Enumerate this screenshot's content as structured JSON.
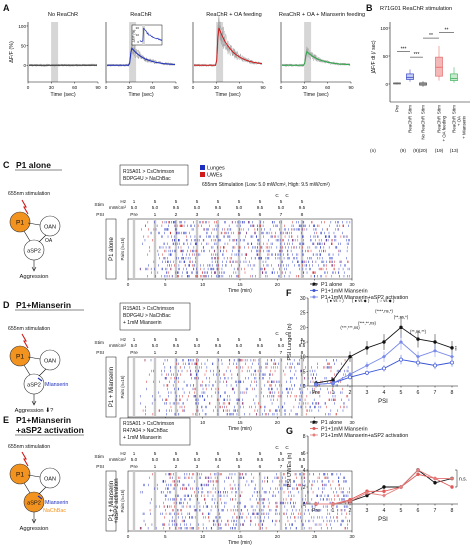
{
  "panelA": {
    "letter": "A",
    "ylabel": "ΔF/F (%)",
    "xlabel": "Time (sec)",
    "yticks": [
      "100",
      "50",
      "0"
    ],
    "xticks": [
      "0",
      "30",
      "60",
      "90"
    ],
    "insetY": "ΔF/F (%)",
    "insetTicks": [
      "20",
      "10",
      "0"
    ],
    "plots": [
      {
        "title": "No ReaChR",
        "color": "#333333",
        "peak": 0
      },
      {
        "title": "ReaChR",
        "color": "#1e2fbf",
        "peak": 25
      },
      {
        "title": "ReaChR + OA feeding",
        "color": "#d11a1a",
        "peak": 55
      },
      {
        "title": "ReaChR + OA + Mianserin feeding",
        "color": "#2ea84a",
        "peak": 20
      }
    ]
  },
  "panelB": {
    "letter": "B",
    "title": "R71G01 ReaChR stimulation",
    "ylabel": "∫ΔF/F dt (/ sec)",
    "yticks": [
      "100",
      "50",
      "0"
    ],
    "groups": [
      {
        "label": "ReaChR",
        "pre": "Pre",
        "stim": "Stim",
        "n": "(9)",
        "color": "#1e2fbf"
      },
      {
        "label": "No ReaChR",
        "pre": "",
        "stim": "Stim",
        "n": "(20)",
        "color": "#333333"
      },
      {
        "label": "ReaChR + OA feeding",
        "pre": "",
        "stim": "Stim",
        "n": "(19)",
        "color": "#e05a5a"
      },
      {
        "label": "ReaChR + OA + Mianserin",
        "pre": "",
        "stim": "Stim",
        "n": "(13)",
        "color": "#2ea84a"
      }
    ],
    "nLabel": "(n)",
    "nFirst": "(9)",
    "sig": [
      "***",
      "***",
      "**",
      "**"
    ]
  },
  "panelC": {
    "letter": "C",
    "title": "P1 alone",
    "stim_label": "655nm stimulation",
    "nodes": {
      "p1": "P1",
      "oan": "OAN",
      "oa": "OA",
      "asp2": "aSP2",
      "aggr": "Aggression"
    },
    "genotype": [
      "R15A01 > CsChrimson",
      "BDPG4U > NaChBac"
    ],
    "legend": [
      {
        "label": "Lunges",
        "color": "#1e2fbf"
      },
      {
        "label": "UWEs",
        "color": "#d11a1a"
      }
    ],
    "protocol": "655nm Stimulation (Low: 5.0 mW/cm², High: 9.5 mW/cm²)",
    "side": "P1 alone"
  },
  "panelD": {
    "letter": "D",
    "title": "P1+Mianserin",
    "stim_label": "655nm stimulation",
    "nodes": {
      "p1": "P1",
      "oan": "OAN",
      "asp2": "aSP2",
      "drug": "Mianserin",
      "aggr": "Aggression ⬇?"
    },
    "genotype": [
      "R15A01 > CsChrimson",
      "BDPG4U > NaChBac",
      "+ 1mM Mianserin"
    ],
    "side": "P1 + Mianserin"
  },
  "panelE": {
    "letter": "E",
    "title": "P1+Mianserin +aSP2 activation",
    "title1": "P1+Mianserin",
    "title2": "+aSP2 activation",
    "stim_label": "655nm stimulation",
    "nodes": {
      "p1": "P1",
      "oan": "OAN",
      "asp2": "aSP2",
      "drug": "Mianserin",
      "nachbac": "NaChBac",
      "aggr": "Aggression"
    },
    "genotype": [
      "R15A01 > CsChrimson",
      "R47A04 > NaChBac",
      "+ 1mM Mianserin"
    ],
    "side1": "P1 + Mianserin",
    "side2": "+aSP2 activation"
  },
  "raster": {
    "hz_label": "Hz",
    "mw_label": "mW/cm²",
    "stim_label": "Stim",
    "psi_label": "PSI",
    "hz": [
      "1",
      "5",
      "5",
      "5",
      "5",
      "5",
      "5",
      "5",
      "5"
    ],
    "mw": [
      "5.0",
      "5.0",
      "9.5",
      "5.0",
      "9.5",
      "5.0",
      "9.5",
      "5.0",
      "9.5"
    ],
    "psi": [
      "Pre",
      "1",
      "2",
      "3",
      "4",
      "5",
      "6",
      "7",
      "8"
    ],
    "c_labels": [
      "C",
      "C"
    ],
    "c_hz": [
      "5",
      "10"
    ],
    "c_mw": [
      "5.0",
      "9.5"
    ],
    "pairs": "Pairs (n=16)",
    "xticks": [
      "0",
      "5",
      "10",
      "15",
      "20",
      "25",
      "30"
    ],
    "xlabel": "Time (min)"
  },
  "chart_data": [
    {
      "type": "line",
      "title": "",
      "xlabel": "PSI",
      "ylabel": "PSI Lunges (n)",
      "categories": [
        "Pre",
        "1",
        "2",
        "3",
        "4",
        "5",
        "6",
        "7",
        "8"
      ],
      "ylim": [
        0,
        30
      ],
      "yticks": [
        "0",
        "5",
        "10",
        "15",
        "20",
        "25",
        "30"
      ],
      "legend": "top-left",
      "series": [
        {
          "name": "P1 alone",
          "color": "#111111",
          "values": [
            1,
            2,
            10,
            13,
            15,
            20,
            16,
            15,
            13
          ]
        },
        {
          "name": "P1+1mM Mianserin",
          "color": "#3a55d6",
          "values": [
            0.5,
            1,
            3,
            4.5,
            6,
            9,
            8,
            7,
            8
          ]
        },
        {
          "name": "P1+1mM Mianserin+aSP2 activation",
          "color": "#7a8ae8",
          "values": [
            0.5,
            1,
            4,
            7,
            10,
            15,
            10,
            12,
            10
          ]
        }
      ]
    },
    {
      "type": "line",
      "title": "",
      "xlabel": "PSI",
      "ylabel": "PSI UWEs (n)",
      "categories": [
        "Pre",
        "1",
        "2",
        "3",
        "4",
        "5",
        "6",
        "7",
        "8"
      ],
      "ylim": [
        0,
        8
      ],
      "yticks": [
        "0",
        "2",
        "4",
        "6",
        "8"
      ],
      "legend": "top-left",
      "series": [
        {
          "name": "P1 alone",
          "color": "#111111",
          "values": [
            0,
            0,
            0.3,
            1,
            2,
            2,
            4,
            2.5,
            3
          ]
        },
        {
          "name": "P1+1mM Mianserin",
          "color": "#e05a5a",
          "values": [
            0,
            0,
            0.5,
            1.5,
            1.5,
            2,
            3.5,
            3,
            2
          ]
        },
        {
          "name": "P1+1mM Mianserin+aSP2 activation",
          "color": "#e58080",
          "values": [
            0,
            0,
            0.3,
            1.3,
            1,
            2,
            4,
            3,
            3
          ]
        }
      ]
    }
  ],
  "panelF": {
    "letter": "F",
    "vs_rows": [
      "( ● vs ○ )",
      "( ● vs ◆ )",
      "( ○ vs ◆ )"
    ],
    "sig_text": [
      "(***,***,ns)",
      "(***,**,ns)",
      "(****,ns,*)",
      "(**,ns,*)",
      "(**,ns,**)"
    ]
  },
  "panelG": {
    "letter": "G",
    "ns": "n.s."
  }
}
